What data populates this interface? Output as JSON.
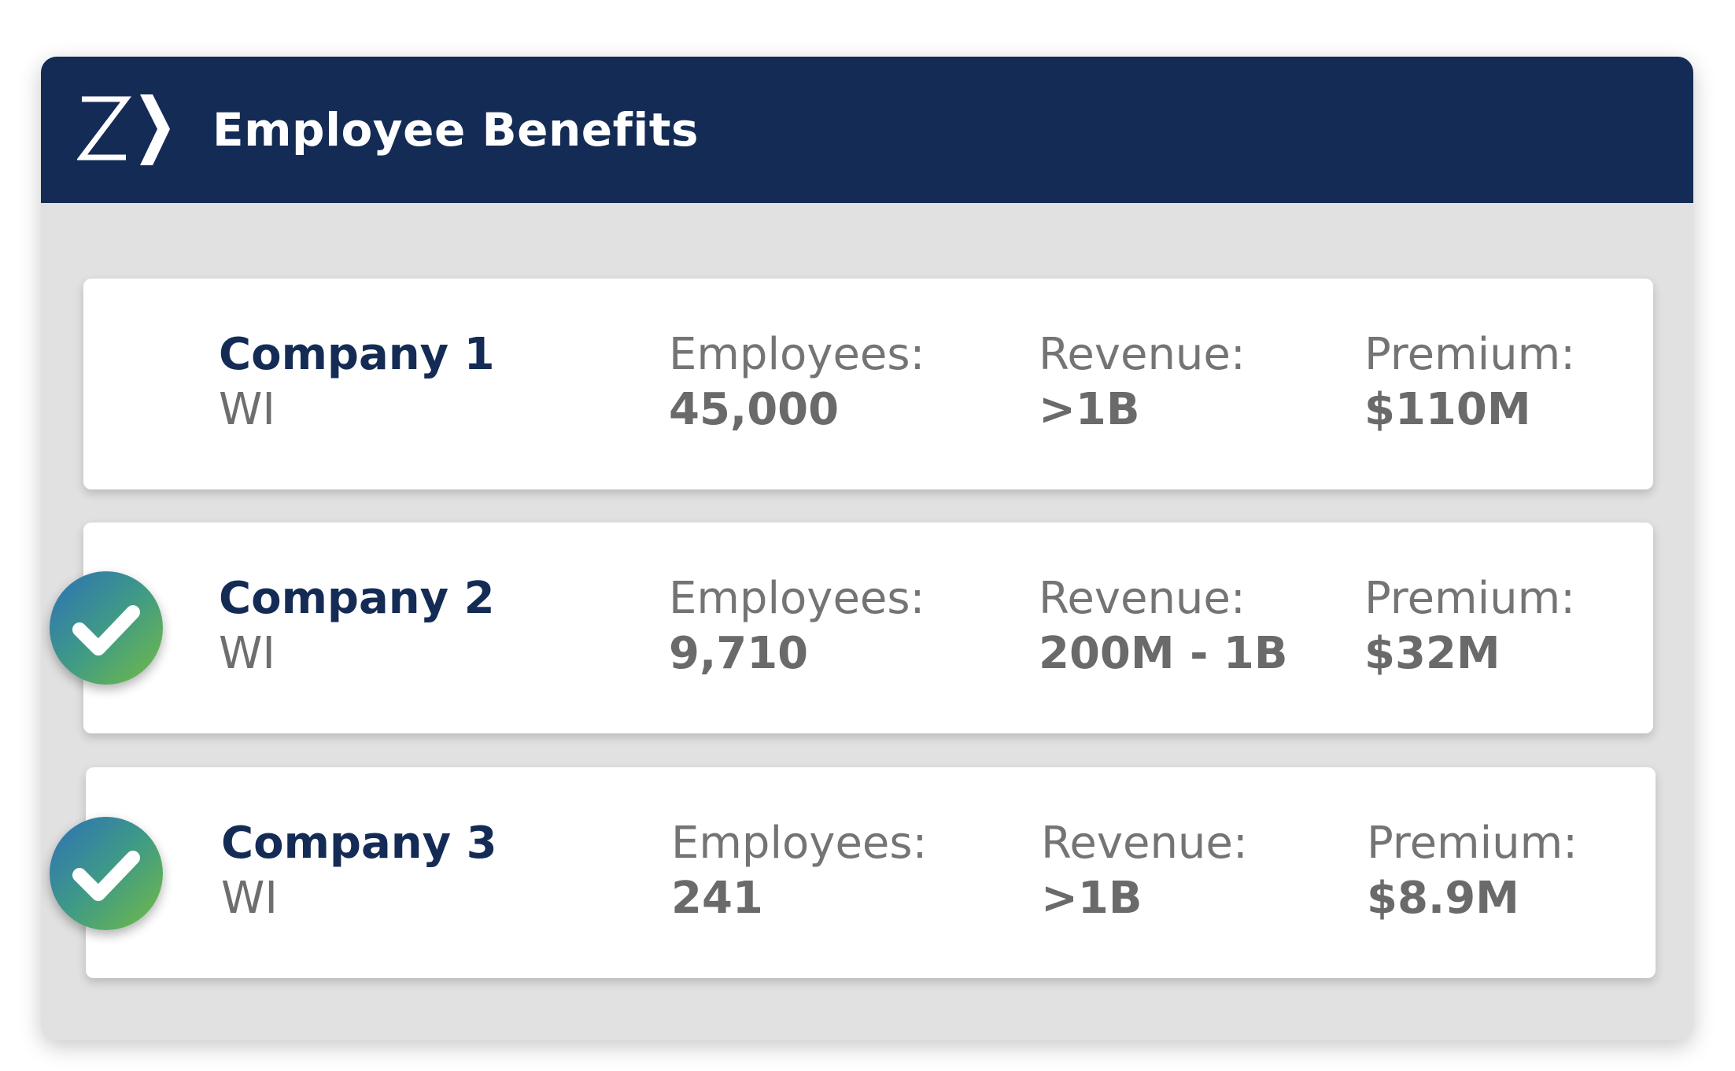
{
  "header": {
    "title": "Employee Benefits",
    "logo_icon": "z-chevron-logo",
    "background_color": "#142c55"
  },
  "companies": [
    {
      "name": "Company 1",
      "state": "WI",
      "employees_label": "Employees:",
      "employees": "45,000",
      "revenue_label": "Revenue:",
      "revenue": ">1B",
      "premium_label": "Premium:",
      "premium": "$110M",
      "checked": false
    },
    {
      "name": "Company 2",
      "state": "WI",
      "employees_label": "Employees:",
      "employees": "9,710",
      "revenue_label": "Revenue:",
      "revenue": "200M - 1B",
      "premium_label": "Premium:",
      "premium": "$32M",
      "checked": true
    },
    {
      "name": "Company 3",
      "state": "WI",
      "employees_label": "Employees:",
      "employees": "241",
      "revenue_label": "Revenue:",
      "revenue": ">1B",
      "premium_label": "Premium:",
      "premium": "$8.9M",
      "checked": true
    }
  ],
  "colors": {
    "accent_navy": "#142c55",
    "check_gradient_start": "#2d70b7",
    "check_gradient_end": "#72bb45"
  }
}
